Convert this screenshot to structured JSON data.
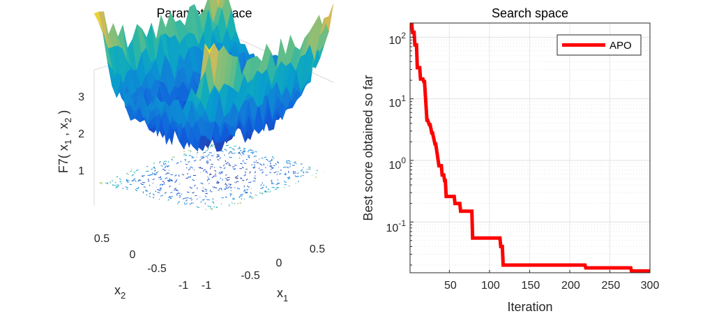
{
  "chart_data": [
    {
      "type": "surface",
      "title": "Parameter space",
      "xlabel": "x",
      "xlabel_sub": "1",
      "ylabel": "x",
      "ylabel_sub": "2",
      "zlabel": "F7( x",
      "zlabel_sub1": "1",
      "zlabel_mid": " , x",
      "zlabel_sub2": "2",
      "zlabel_end": " )",
      "x_ticks": [
        "-1",
        "-0.5",
        "0",
        "0.5"
      ],
      "y_ticks": [
        "-1",
        "-0.5",
        "0",
        "0.5"
      ],
      "z_ticks": [
        "1",
        "2",
        "3"
      ],
      "xlim": [
        -1,
        1
      ],
      "ylim": [
        -1,
        1
      ],
      "zlim": [
        0,
        3.6
      ],
      "colormap": "parula",
      "contour_projection": true
    },
    {
      "type": "line",
      "title": "Search space",
      "xlabel": "Iteration",
      "ylabel": "Best score obtained so far",
      "yscale": "log",
      "xlim": [
        1,
        300
      ],
      "ylim": [
        0.015,
        170
      ],
      "x_ticks": [
        "50",
        "100",
        "150",
        "200",
        "250",
        "300"
      ],
      "y_ticks": [
        {
          "base": "10",
          "exp": "2"
        },
        {
          "base": "10",
          "exp": "1"
        },
        {
          "base": "10",
          "exp": "0"
        },
        {
          "base": "10",
          "exp": "-1"
        }
      ],
      "grid": true,
      "legend_position": "top-right",
      "series": [
        {
          "name": "APO",
          "color": "#ff0000",
          "x": [
            1,
            3,
            4,
            6,
            7,
            9,
            10,
            13,
            14,
            17,
            18,
            19,
            22,
            23,
            25,
            26,
            28,
            29,
            32,
            33,
            37,
            38,
            39,
            40,
            41,
            43,
            44,
            45,
            46,
            52,
            53,
            56,
            57,
            63,
            64,
            78,
            79,
            113,
            114,
            116,
            117,
            219,
            220,
            276,
            277,
            300
          ],
          "y": [
            170,
            170,
            120,
            120,
            75,
            75,
            32,
            32,
            21,
            21,
            19,
            19,
            4.5,
            4.5,
            3.8,
            3.8,
            2.8,
            2.8,
            1.85,
            1.85,
            0.82,
            0.82,
            0.82,
            0.82,
            0.58,
            0.58,
            0.47,
            0.47,
            0.26,
            0.26,
            0.26,
            0.26,
            0.2,
            0.2,
            0.15,
            0.15,
            0.055,
            0.055,
            0.04,
            0.04,
            0.02,
            0.02,
            0.018,
            0.018,
            0.016,
            0.016
          ]
        }
      ]
    }
  ]
}
